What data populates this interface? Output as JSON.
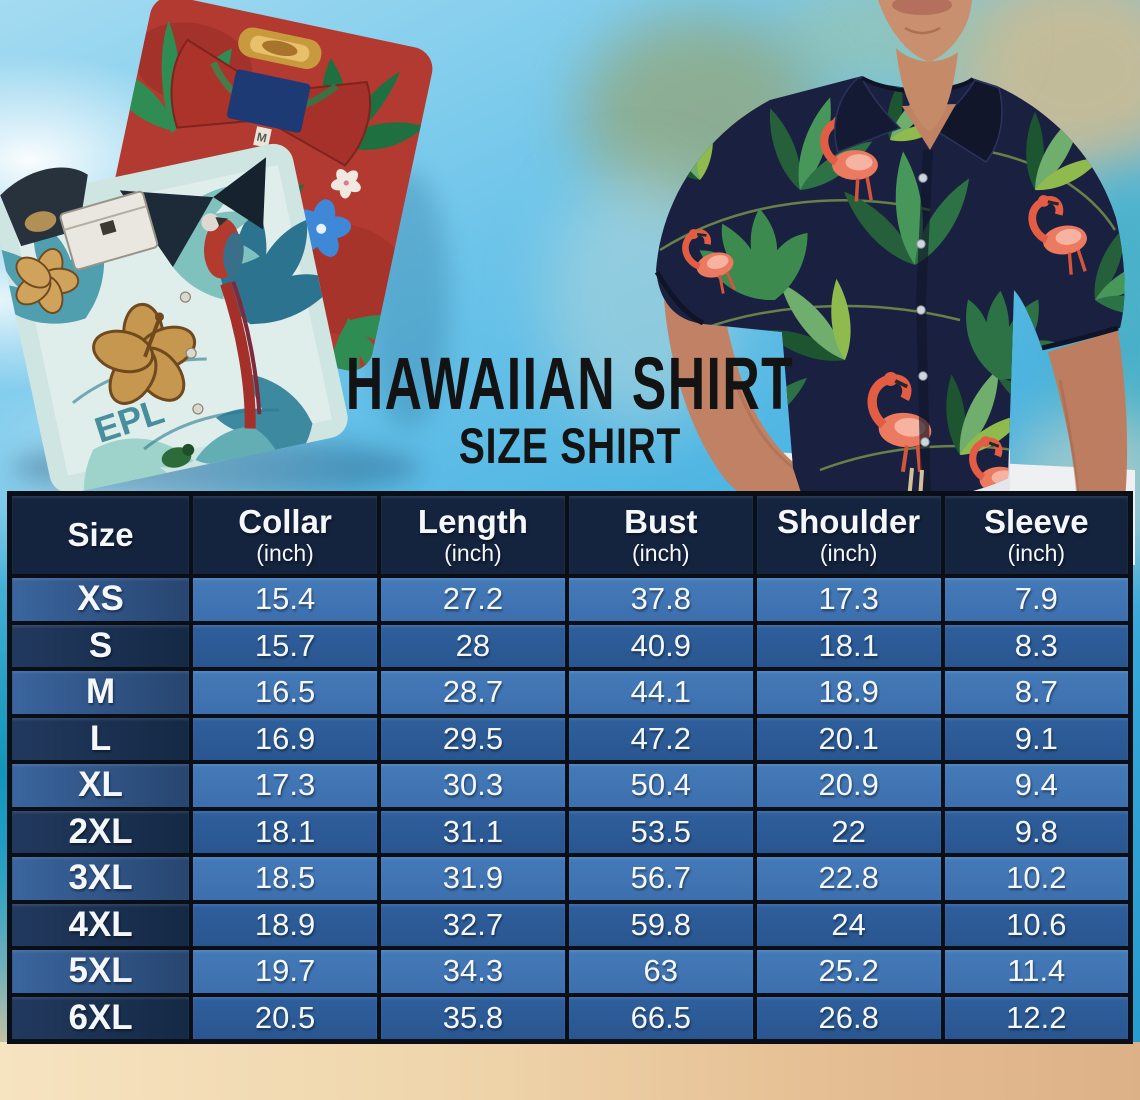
{
  "page": {
    "title": "HAWAIIAN SHIRT",
    "subtitle": "SIZE SHIRT"
  },
  "size_chart": {
    "columns": [
      {
        "label": "Size",
        "sub": ""
      },
      {
        "label": "Collar",
        "sub": "(inch)"
      },
      {
        "label": "Length",
        "sub": "(inch)"
      },
      {
        "label": "Bust",
        "sub": "(inch)"
      },
      {
        "label": "Shoulder",
        "sub": "(inch)"
      },
      {
        "label": "Sleeve",
        "sub": "(inch)"
      }
    ],
    "rows": [
      {
        "size": "XS",
        "collar": "15.4",
        "length": "27.2",
        "bust": "37.8",
        "shoulder": "17.3",
        "sleeve": "7.9"
      },
      {
        "size": "S",
        "collar": "15.7",
        "length": "28",
        "bust": "40.9",
        "shoulder": "18.1",
        "sleeve": "8.3"
      },
      {
        "size": "M",
        "collar": "16.5",
        "length": "28.7",
        "bust": "44.1",
        "shoulder": "18.9",
        "sleeve": "8.7"
      },
      {
        "size": "L",
        "collar": "16.9",
        "length": "29.5",
        "bust": "47.2",
        "shoulder": "20.1",
        "sleeve": "9.1"
      },
      {
        "size": "XL",
        "collar": "17.3",
        "length": "30.3",
        "bust": "50.4",
        "shoulder": "20.9",
        "sleeve": "9.4"
      },
      {
        "size": "2XL",
        "collar": "18.1",
        "length": "31.1",
        "bust": "53.5",
        "shoulder": "22",
        "sleeve": "9.8"
      },
      {
        "size": "3XL",
        "collar": "18.5",
        "length": "31.9",
        "bust": "56.7",
        "shoulder": "22.8",
        "sleeve": "10.2"
      },
      {
        "size": "4XL",
        "collar": "18.9",
        "length": "32.7",
        "bust": "59.8",
        "shoulder": "24",
        "sleeve": "10.6"
      },
      {
        "size": "5XL",
        "collar": "19.7",
        "length": "34.3",
        "bust": "63",
        "shoulder": "25.2",
        "sleeve": "11.4"
      },
      {
        "size": "6XL",
        "collar": "20.5",
        "length": "35.8",
        "bust": "66.5",
        "shoulder": "26.8",
        "sleeve": "12.2"
      }
    ]
  },
  "chart_data": {
    "type": "table",
    "title": "HAWAIIAN SHIRT SIZE SHIRT",
    "categories": [
      "XS",
      "S",
      "M",
      "L",
      "XL",
      "2XL",
      "3XL",
      "4XL",
      "5XL",
      "6XL"
    ],
    "series": [
      {
        "name": "Collar (inch)",
        "values": [
          15.4,
          15.7,
          16.5,
          16.9,
          17.3,
          18.1,
          18.5,
          18.9,
          19.7,
          20.5
        ]
      },
      {
        "name": "Length (inch)",
        "values": [
          27.2,
          28,
          28.7,
          29.5,
          30.3,
          31.1,
          31.9,
          32.7,
          34.3,
          35.8
        ]
      },
      {
        "name": "Bust (inch)",
        "values": [
          37.8,
          40.9,
          44.1,
          47.2,
          50.4,
          53.5,
          56.7,
          59.8,
          63,
          66.5
        ]
      },
      {
        "name": "Shoulder (inch)",
        "values": [
          17.3,
          18.1,
          18.9,
          20.1,
          20.9,
          22,
          22.8,
          24,
          25.2,
          26.8
        ]
      },
      {
        "name": "Sleeve (inch)",
        "values": [
          7.9,
          8.3,
          8.7,
          9.1,
          9.4,
          9.8,
          10.2,
          10.6,
          11.4,
          12.2
        ]
      }
    ]
  },
  "photos": {
    "left": "two folded hawaiian shirts (red tropical + teal hibiscus parrot)",
    "right": "man wearing navy flamingo-leaf hawaiian shirt, hands in pockets",
    "red_shirt_tag": "M",
    "teal_shirt_print": "EPL"
  },
  "colors": {
    "header_bg": "#14233e",
    "row_light_data": "#3d6fae",
    "row_light_size": "#2c4c78",
    "row_dark_data": "#2a5690",
    "row_dark_size": "#1b3256",
    "table_border": "#0a0e16",
    "title_text": "#131313",
    "sky_top": "#a4dbf1",
    "sky_bottom": "#2699cd",
    "sand": "#eccfa4",
    "shirt_navy": "#1a2140",
    "shirt_red": "#b23a30",
    "shirt_teal_base": "#cfe5e1",
    "flamingo": "#ec7a60",
    "leaf_green": "#3c8a4e"
  }
}
